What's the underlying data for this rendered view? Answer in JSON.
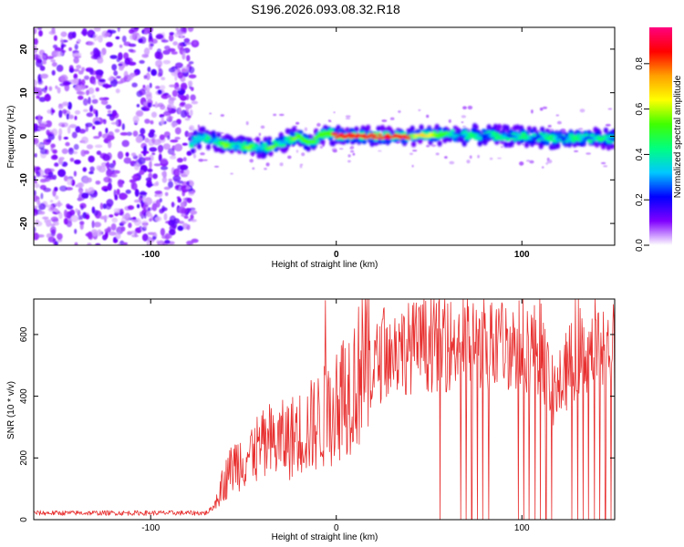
{
  "title": "S196.2026.093.08.32.R18",
  "chart_data": [
    {
      "type": "heatmap",
      "xlabel": "Height of straight line (km)",
      "ylabel": "Frequency (Hz)",
      "xlim": [
        -163,
        150
      ],
      "ylim": [
        -25,
        25
      ],
      "xticks": [
        -100,
        0,
        100
      ],
      "yticks": [
        -20,
        -10,
        0,
        10,
        20
      ],
      "xtick_labels": [
        "-100",
        "0",
        "100"
      ],
      "ytick_labels": [
        "-20",
        "-10",
        "0",
        "10",
        "20"
      ],
      "noise_x_range": [
        -163,
        -78
      ],
      "signal_ridge": {
        "x": [
          -78,
          -72,
          -66,
          -60,
          -54,
          -48,
          -42,
          -36,
          -30,
          -24,
          -20,
          -16,
          -12,
          -8,
          -4,
          0,
          10,
          20,
          40,
          60,
          80,
          100,
          120,
          150
        ],
        "y": [
          -1.5,
          0.0,
          -1.0,
          -2.0,
          -2.5,
          -2.3,
          -2.8,
          -2.5,
          -1.5,
          -0.5,
          0.0,
          -1.5,
          -1.0,
          0.5,
          0.8,
          0.2,
          0.0,
          0.0,
          0.0,
          0.5,
          0.2,
          0.0,
          -0.5,
          -0.5
        ]
      },
      "peak_amplitude_x_range": [
        -2,
        40
      ],
      "colorbar": {
        "label": "Normalized spectral amplitude",
        "range": [
          0,
          0.96
        ],
        "ticks": [
          0.0,
          0.2,
          0.4,
          0.6,
          0.8
        ],
        "tick_labels": [
          "0.0",
          "0.2",
          "0.4",
          "0.6",
          "0.8"
        ],
        "colors": [
          "#ffffff",
          "#8000ff",
          "#0000ff",
          "#00c8ff",
          "#00ff80",
          "#40ff00",
          "#ffff00",
          "#ffa000",
          "#ff0000",
          "#ff0080"
        ]
      }
    },
    {
      "type": "line",
      "xlabel": "Height of straight line (km)",
      "ylabel": "SNR (10 * v/v)",
      "xlim": [
        -163,
        150
      ],
      "ylim": [
        0,
        715
      ],
      "xticks": [
        -100,
        0,
        100
      ],
      "yticks": [
        0,
        200,
        400,
        600
      ],
      "xtick_labels": [
        "-100",
        "0",
        "100"
      ],
      "ytick_labels": [
        "0",
        "200",
        "400",
        "600"
      ],
      "line_color": "#e83030",
      "envelope": {
        "x": [
          -163,
          -70,
          -66,
          -62,
          -55,
          -45,
          -35,
          -25,
          -15,
          -5,
          5,
          15,
          25,
          35,
          50,
          70,
          90,
          100,
          110,
          118,
          122,
          130,
          150
        ],
        "y": [
          20,
          20,
          40,
          100,
          170,
          210,
          230,
          250,
          280,
          320,
          400,
          460,
          510,
          540,
          550,
          555,
          555,
          550,
          540,
          380,
          450,
          530,
          540
        ]
      },
      "spikes": [
        {
          "x": -6,
          "y": 710
        },
        {
          "x": 25,
          "y": 650
        },
        {
          "x": 45,
          "y": 670
        },
        {
          "x": 66,
          "y": 665
        },
        {
          "x": 88,
          "y": 650
        },
        {
          "x": 110,
          "y": 640
        }
      ],
      "dropout_x": [
        56,
        67,
        70,
        73,
        76,
        79,
        82,
        98,
        101,
        104,
        107,
        110,
        113,
        116,
        127,
        130,
        133,
        136,
        139,
        142,
        145,
        148
      ]
    }
  ]
}
